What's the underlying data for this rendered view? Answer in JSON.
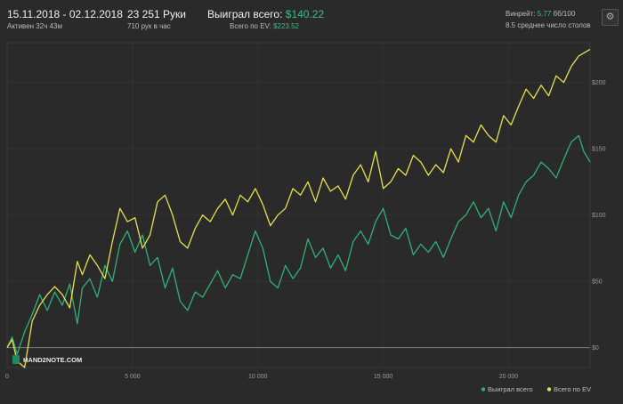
{
  "header": {
    "date_range": "15.11.2018 - 02.12.2018",
    "active_time": "Активен 32ч 43м",
    "hands_value": "23 251 Руки",
    "hands_per_hour": "710 рук в час",
    "won_label": "Выиграл всего:",
    "won_value": "$140.22",
    "ev_label": "Всего по EV:",
    "ev_value": "$223.52",
    "winrate_label": "Винрейт:",
    "winrate_value": "5.77",
    "winrate_unit": "бб/100",
    "avg_tables": "8.5 среднее число столов",
    "settings_icon": "gear-icon"
  },
  "watermark": "HAND2NOTE.COM",
  "colors": {
    "won": "#2fb07a",
    "ev": "#e6e04a",
    "background": "#2a2a2a",
    "grid": "#333333",
    "zero": "#7a7a7a"
  },
  "chart_data": {
    "type": "line",
    "xlim": [
      0,
      23251
    ],
    "ylim": [
      -15,
      230
    ],
    "x_ticks": [
      {
        "value": 0,
        "label": "0"
      },
      {
        "value": 5000,
        "label": "5 000"
      },
      {
        "value": 10000,
        "label": "10 000"
      },
      {
        "value": 15000,
        "label": "15 000"
      },
      {
        "value": 20000,
        "label": "20 000"
      }
    ],
    "y_ticks": [
      {
        "value": 0,
        "label": "$0"
      },
      {
        "value": 50,
        "label": "$50"
      },
      {
        "value": 100,
        "label": "$100"
      },
      {
        "value": 150,
        "label": "$150"
      },
      {
        "value": 200,
        "label": "$200"
      }
    ],
    "legend_position": "bottom-right",
    "series": [
      {
        "name": "Выиграл всего",
        "color": "#2fb07a",
        "points": [
          [
            0,
            0
          ],
          [
            200,
            8
          ],
          [
            400,
            -5
          ],
          [
            700,
            12
          ],
          [
            1000,
            25
          ],
          [
            1300,
            40
          ],
          [
            1600,
            28
          ],
          [
            1900,
            42
          ],
          [
            2200,
            32
          ],
          [
            2500,
            48
          ],
          [
            2800,
            18
          ],
          [
            3000,
            45
          ],
          [
            3300,
            52
          ],
          [
            3600,
            38
          ],
          [
            3900,
            62
          ],
          [
            4200,
            50
          ],
          [
            4500,
            78
          ],
          [
            4800,
            88
          ],
          [
            5100,
            72
          ],
          [
            5400,
            85
          ],
          [
            5700,
            62
          ],
          [
            6000,
            68
          ],
          [
            6300,
            45
          ],
          [
            6600,
            60
          ],
          [
            6900,
            35
          ],
          [
            7200,
            28
          ],
          [
            7500,
            42
          ],
          [
            7800,
            38
          ],
          [
            8100,
            48
          ],
          [
            8400,
            58
          ],
          [
            8700,
            45
          ],
          [
            9000,
            55
          ],
          [
            9300,
            52
          ],
          [
            9600,
            70
          ],
          [
            9900,
            88
          ],
          [
            10200,
            75
          ],
          [
            10500,
            50
          ],
          [
            10800,
            45
          ],
          [
            11100,
            62
          ],
          [
            11400,
            52
          ],
          [
            11700,
            60
          ],
          [
            12000,
            82
          ],
          [
            12300,
            68
          ],
          [
            12600,
            75
          ],
          [
            12900,
            60
          ],
          [
            13200,
            70
          ],
          [
            13500,
            58
          ],
          [
            13800,
            80
          ],
          [
            14100,
            88
          ],
          [
            14400,
            78
          ],
          [
            14700,
            95
          ],
          [
            15000,
            105
          ],
          [
            15300,
            85
          ],
          [
            15600,
            82
          ],
          [
            15900,
            90
          ],
          [
            16200,
            70
          ],
          [
            16500,
            78
          ],
          [
            16800,
            72
          ],
          [
            17100,
            80
          ],
          [
            17400,
            68
          ],
          [
            17700,
            82
          ],
          [
            18000,
            95
          ],
          [
            18300,
            100
          ],
          [
            18600,
            110
          ],
          [
            18900,
            98
          ],
          [
            19200,
            105
          ],
          [
            19500,
            88
          ],
          [
            19800,
            110
          ],
          [
            20100,
            98
          ],
          [
            20400,
            115
          ],
          [
            20700,
            125
          ],
          [
            21000,
            130
          ],
          [
            21300,
            140
          ],
          [
            21600,
            135
          ],
          [
            21900,
            128
          ],
          [
            22200,
            142
          ],
          [
            22500,
            155
          ],
          [
            22800,
            160
          ],
          [
            23000,
            148
          ],
          [
            23251,
            140
          ]
        ]
      },
      {
        "name": "Всего по EV",
        "color": "#e6e04a",
        "points": [
          [
            0,
            0
          ],
          [
            200,
            6
          ],
          [
            400,
            -10
          ],
          [
            700,
            -15
          ],
          [
            1000,
            20
          ],
          [
            1300,
            32
          ],
          [
            1600,
            40
          ],
          [
            1900,
            46
          ],
          [
            2200,
            40
          ],
          [
            2500,
            30
          ],
          [
            2800,
            65
          ],
          [
            3000,
            55
          ],
          [
            3300,
            70
          ],
          [
            3600,
            62
          ],
          [
            3900,
            52
          ],
          [
            4200,
            80
          ],
          [
            4500,
            105
          ],
          [
            4800,
            95
          ],
          [
            5100,
            98
          ],
          [
            5400,
            75
          ],
          [
            5700,
            85
          ],
          [
            6000,
            110
          ],
          [
            6300,
            115
          ],
          [
            6600,
            100
          ],
          [
            6900,
            80
          ],
          [
            7200,
            75
          ],
          [
            7500,
            90
          ],
          [
            7800,
            100
          ],
          [
            8100,
            95
          ],
          [
            8400,
            105
          ],
          [
            8700,
            112
          ],
          [
            9000,
            100
          ],
          [
            9300,
            115
          ],
          [
            9600,
            110
          ],
          [
            9900,
            120
          ],
          [
            10200,
            108
          ],
          [
            10500,
            92
          ],
          [
            10800,
            100
          ],
          [
            11100,
            105
          ],
          [
            11400,
            120
          ],
          [
            11700,
            115
          ],
          [
            12000,
            125
          ],
          [
            12300,
            110
          ],
          [
            12600,
            128
          ],
          [
            12900,
            118
          ],
          [
            13200,
            122
          ],
          [
            13500,
            112
          ],
          [
            13800,
            130
          ],
          [
            14100,
            138
          ],
          [
            14400,
            125
          ],
          [
            14700,
            148
          ],
          [
            15000,
            120
          ],
          [
            15300,
            125
          ],
          [
            15600,
            135
          ],
          [
            15900,
            130
          ],
          [
            16200,
            145
          ],
          [
            16500,
            140
          ],
          [
            16800,
            130
          ],
          [
            17100,
            138
          ],
          [
            17400,
            132
          ],
          [
            17700,
            150
          ],
          [
            18000,
            140
          ],
          [
            18300,
            160
          ],
          [
            18600,
            155
          ],
          [
            18900,
            168
          ],
          [
            19200,
            160
          ],
          [
            19500,
            155
          ],
          [
            19800,
            175
          ],
          [
            20100,
            168
          ],
          [
            20400,
            182
          ],
          [
            20700,
            195
          ],
          [
            21000,
            188
          ],
          [
            21300,
            198
          ],
          [
            21600,
            190
          ],
          [
            21900,
            205
          ],
          [
            22200,
            200
          ],
          [
            22500,
            212
          ],
          [
            22800,
            220
          ],
          [
            23251,
            225
          ]
        ]
      }
    ]
  }
}
